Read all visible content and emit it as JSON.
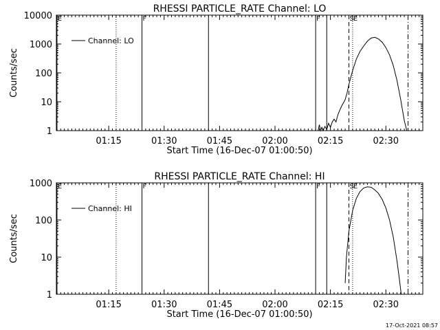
{
  "footer": {
    "timestamp": "17-Oct-2021 08:57"
  },
  "chart_data": [
    {
      "type": "line",
      "title": "RHESSI PARTICLE_RATE Channel: LO",
      "xlabel": "Start Time (16-Dec-07 01:00:50)",
      "ylabel": "Counts/sec",
      "yscale": "log",
      "xlim": [
        "01:00:50",
        "02:40:00"
      ],
      "ylim": [
        1,
        10000
      ],
      "x_ticks": [
        "01:15",
        "01:30",
        "01:45",
        "02:00",
        "02:15",
        "02:30"
      ],
      "y_ticks": [
        "1",
        "10",
        "100",
        "1000",
        "10000"
      ],
      "legend": {
        "position": "top-left",
        "entries": [
          "Channel: LO"
        ]
      },
      "markers": [
        {
          "time": "01:01",
          "label": "E",
          "style": "solid"
        },
        {
          "time": "01:17",
          "label": "",
          "style": "dotted"
        },
        {
          "time": "01:24",
          "label": "F",
          "style": "solid"
        },
        {
          "time": "01:42",
          "label": "",
          "style": "solid"
        },
        {
          "time": "02:11",
          "label": "F",
          "style": "solid"
        },
        {
          "time": "02:14",
          "label": "",
          "style": "solid"
        },
        {
          "time": "02:20",
          "label": "S",
          "style": "dashed"
        },
        {
          "time": "02:21",
          "label": "E",
          "style": "dotted"
        },
        {
          "time": "02:36",
          "label": "",
          "style": "dashdot"
        }
      ],
      "series": [
        {
          "name": "Channel: LO",
          "x": [
            "02:11:40",
            "02:12:00",
            "02:12:20",
            "02:12:40",
            "02:13:00",
            "02:13:30",
            "02:14:00",
            "02:14:30",
            "02:15:00",
            "02:15:30",
            "02:16:00",
            "02:16:30",
            "02:17:00",
            "02:17:30",
            "02:18:00",
            "02:18:30",
            "02:19:00",
            "02:19:30",
            "02:20:00",
            "02:21:00",
            "02:22:00",
            "02:23:00",
            "02:24:00",
            "02:25:00",
            "02:26:00",
            "02:27:00",
            "02:28:00",
            "02:29:00",
            "02:30:00",
            "02:31:00",
            "02:32:00",
            "02:33:00",
            "02:34:00",
            "02:35:00",
            "02:35:40"
          ],
          "y": [
            1.0,
            1.6,
            1.0,
            1.3,
            1.0,
            1.4,
            1.1,
            1.8,
            1.3,
            2.0,
            2.5,
            2.0,
            3.5,
            5,
            7,
            9,
            12,
            20,
            40,
            120,
            300,
            550,
            850,
            1250,
            1600,
            1700,
            1500,
            1150,
            750,
            420,
            180,
            55,
            12,
            2.2,
            1.0
          ]
        }
      ]
    },
    {
      "type": "line",
      "title": "RHESSI PARTICLE_RATE Channel: HI",
      "xlabel": "Start Time (16-Dec-07 01:00:50)",
      "ylabel": "Counts/sec",
      "yscale": "log",
      "xlim": [
        "01:00:50",
        "02:40:00"
      ],
      "ylim": [
        1,
        1000
      ],
      "x_ticks": [
        "01:15",
        "01:30",
        "01:45",
        "02:00",
        "02:15",
        "02:30"
      ],
      "y_ticks": [
        "1",
        "10",
        "100",
        "1000"
      ],
      "legend": {
        "position": "top-left",
        "entries": [
          "Channel: HI"
        ]
      },
      "markers": [
        {
          "time": "01:01",
          "label": "E",
          "style": "solid"
        },
        {
          "time": "01:17",
          "label": "",
          "style": "dotted"
        },
        {
          "time": "01:24",
          "label": "F",
          "style": "solid"
        },
        {
          "time": "01:42",
          "label": "",
          "style": "solid"
        },
        {
          "time": "02:11",
          "label": "F",
          "style": "solid"
        },
        {
          "time": "02:14",
          "label": "",
          "style": "solid"
        },
        {
          "time": "02:20",
          "label": "S",
          "style": "dashed"
        },
        {
          "time": "02:21",
          "label": "E",
          "style": "dotted"
        },
        {
          "time": "02:36",
          "label": "",
          "style": "dashdot"
        }
      ],
      "series": [
        {
          "name": "Channel: HI",
          "x": [
            "02:19:00",
            "02:19:20",
            "02:20:00",
            "02:21:00",
            "02:22:00",
            "02:23:00",
            "02:24:00",
            "02:25:00",
            "02:26:00",
            "02:27:00",
            "02:28:00",
            "02:29:00",
            "02:30:00",
            "02:31:00",
            "02:32:00",
            "02:33:00",
            "02:33:40",
            "02:34:10"
          ],
          "y": [
            2.0,
            10,
            50,
            180,
            380,
            580,
            730,
            780,
            760,
            650,
            520,
            360,
            210,
            100,
            35,
            8,
            2.5,
            1.0
          ]
        }
      ]
    }
  ]
}
